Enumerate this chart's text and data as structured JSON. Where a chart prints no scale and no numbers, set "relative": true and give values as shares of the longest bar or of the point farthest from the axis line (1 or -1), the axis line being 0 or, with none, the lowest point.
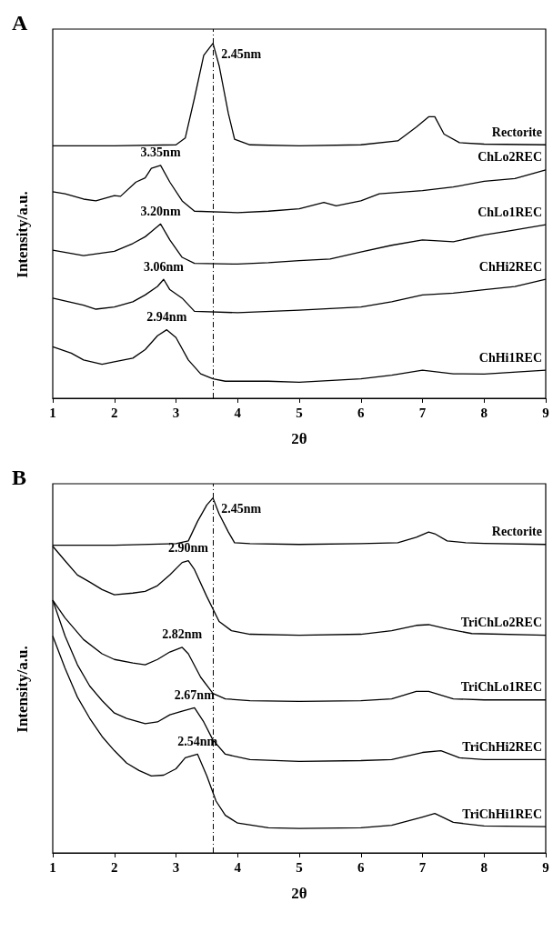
{
  "chart_data": [
    {
      "type": "line",
      "title": "A",
      "xlabel": "2θ",
      "ylabel": "Intensity/a.u.",
      "relative": true,
      "xlim": [
        1,
        9
      ],
      "xticks": [
        1,
        2,
        3,
        4,
        5,
        6,
        7,
        8,
        9
      ],
      "tick_labels": "x",
      "grid": false,
      "legend": false,
      "marker": "none",
      "line_style": "solid",
      "ref_lines": [
        {
          "axis": "x",
          "value": 3.6,
          "line_style": "dashed",
          "color": "#000000"
        }
      ],
      "annotations": [
        {
          "text": "2.45nm",
          "x": 3.6,
          "y": 1.0
        },
        {
          "text": "3.35nm",
          "x": 2.75,
          "y": 0.656
        },
        {
          "text": "3.20nm",
          "x": 2.75,
          "y": 0.491
        },
        {
          "text": "3.06nm",
          "x": 2.8,
          "y": 0.335
        },
        {
          "text": "2.94nm",
          "x": 2.85,
          "y": 0.193
        }
      ],
      "series": [
        {
          "name": "Rectorite",
          "color": "#000000",
          "x": [
            1,
            2,
            3,
            3.15,
            3.3,
            3.45,
            3.6,
            3.7,
            3.85,
            3.95,
            4.2,
            5,
            6,
            6.6,
            6.9,
            7.1,
            7.2,
            7.35,
            7.6,
            8,
            9
          ],
          "values": [
            0.711,
            0.711,
            0.714,
            0.733,
            0.846,
            0.966,
            1.0,
            0.937,
            0.802,
            0.73,
            0.714,
            0.711,
            0.714,
            0.725,
            0.764,
            0.793,
            0.793,
            0.744,
            0.72,
            0.716,
            0.714
          ]
        },
        {
          "name": "ChLo2REC",
          "color": "#000000",
          "x": [
            1,
            1.2,
            1.5,
            1.7,
            2,
            2.1,
            2.35,
            2.5,
            2.6,
            2.75,
            2.9,
            3.1,
            3.3,
            4,
            4.5,
            5,
            5.4,
            5.6,
            6,
            6.3,
            7,
            7.5,
            8,
            8.5,
            9
          ],
          "values": [
            0.582,
            0.576,
            0.561,
            0.556,
            0.571,
            0.569,
            0.609,
            0.621,
            0.648,
            0.656,
            0.609,
            0.556,
            0.527,
            0.523,
            0.527,
            0.534,
            0.552,
            0.542,
            0.556,
            0.576,
            0.585,
            0.595,
            0.611,
            0.619,
            0.643
          ]
        },
        {
          "name": "ChLo1REC",
          "color": "#000000",
          "x": [
            1,
            1.5,
            2,
            2.3,
            2.5,
            2.75,
            2.9,
            3.1,
            3.3,
            4,
            4.5,
            5,
            5.5,
            6,
            6.5,
            7,
            7.5,
            8,
            8.5,
            9
          ],
          "values": [
            0.417,
            0.402,
            0.414,
            0.436,
            0.455,
            0.491,
            0.446,
            0.397,
            0.38,
            0.378,
            0.382,
            0.388,
            0.392,
            0.412,
            0.431,
            0.446,
            0.441,
            0.46,
            0.474,
            0.489
          ]
        },
        {
          "name": "ChHi2REC",
          "color": "#000000",
          "x": [
            1,
            1.5,
            1.7,
            2,
            2.3,
            2.5,
            2.7,
            2.8,
            2.9,
            3.1,
            3.3,
            4,
            5,
            6,
            6.5,
            7,
            7.5,
            8,
            8.5,
            9
          ],
          "values": [
            0.282,
            0.262,
            0.251,
            0.257,
            0.272,
            0.291,
            0.315,
            0.335,
            0.306,
            0.282,
            0.245,
            0.241,
            0.248,
            0.257,
            0.272,
            0.291,
            0.296,
            0.306,
            0.315,
            0.335
          ]
        },
        {
          "name": "ChHi1REC",
          "color": "#000000",
          "x": [
            1,
            1.3,
            1.5,
            1.8,
            2,
            2.3,
            2.5,
            2.7,
            2.85,
            3,
            3.2,
            3.4,
            3.6,
            3.8,
            4.5,
            5,
            6,
            6.5,
            7,
            7.5,
            8,
            9
          ],
          "values": [
            0.145,
            0.127,
            0.108,
            0.096,
            0.103,
            0.113,
            0.137,
            0.176,
            0.193,
            0.171,
            0.108,
            0.069,
            0.055,
            0.048,
            0.048,
            0.045,
            0.055,
            0.065,
            0.079,
            0.069,
            0.068,
            0.079
          ]
        }
      ]
    },
    {
      "type": "line",
      "title": "B",
      "xlabel": "2θ",
      "ylabel": "Intensity/a.u.",
      "relative": true,
      "xlim": [
        1,
        9
      ],
      "xticks": [
        1,
        2,
        3,
        4,
        5,
        6,
        7,
        8,
        9
      ],
      "tick_labels": "x",
      "grid": false,
      "legend": false,
      "marker": "none",
      "line_style": "solid",
      "ref_lines": [
        {
          "axis": "x",
          "value": 3.6,
          "line_style": "dashed",
          "color": "#000000"
        }
      ],
      "annotations": [
        {
          "text": "2.45nm",
          "x": 3.6,
          "y": 1.0
        },
        {
          "text": "2.90nm",
          "x": 3.2,
          "y": 0.823
        },
        {
          "text": "2.82nm",
          "x": 3.1,
          "y": 0.579
        },
        {
          "text": "2.67nm",
          "x": 3.3,
          "y": 0.409
        },
        {
          "text": "2.54nm",
          "x": 3.35,
          "y": 0.278
        }
      ],
      "series": [
        {
          "name": "Rectorite",
          "color": "#000000",
          "x": [
            1,
            2,
            3,
            3.2,
            3.35,
            3.5,
            3.6,
            3.7,
            3.85,
            3.95,
            4.2,
            5,
            6,
            6.6,
            6.9,
            7.1,
            7.2,
            7.4,
            7.7,
            8,
            9
          ],
          "values": [
            0.867,
            0.867,
            0.871,
            0.879,
            0.934,
            0.98,
            1.0,
            0.955,
            0.904,
            0.874,
            0.871,
            0.869,
            0.871,
            0.874,
            0.889,
            0.904,
            0.899,
            0.879,
            0.874,
            0.872,
            0.869
          ]
        },
        {
          "name": "TriChLo2REC",
          "color": "#000000",
          "x": [
            1,
            1.2,
            1.4,
            1.6,
            1.8,
            2,
            2.3,
            2.5,
            2.7,
            2.9,
            3.1,
            3.2,
            3.3,
            3.5,
            3.7,
            3.9,
            4.2,
            5,
            6,
            6.5,
            6.9,
            7.1,
            7.4,
            7.8,
            9
          ],
          "values": [
            0.864,
            0.823,
            0.783,
            0.763,
            0.742,
            0.727,
            0.732,
            0.737,
            0.753,
            0.783,
            0.818,
            0.823,
            0.798,
            0.722,
            0.652,
            0.626,
            0.616,
            0.613,
            0.616,
            0.626,
            0.641,
            0.643,
            0.631,
            0.618,
            0.613
          ]
        },
        {
          "name": "TriChLo1REC",
          "color": "#000000",
          "x": [
            1,
            1.2,
            1.5,
            1.8,
            2,
            2.3,
            2.5,
            2.7,
            2.9,
            3.1,
            3.2,
            3.4,
            3.6,
            3.8,
            4.2,
            5,
            6,
            6.5,
            6.9,
            7.1,
            7.5,
            8,
            9
          ],
          "values": [
            0.712,
            0.662,
            0.601,
            0.561,
            0.545,
            0.535,
            0.53,
            0.545,
            0.566,
            0.579,
            0.561,
            0.495,
            0.449,
            0.434,
            0.429,
            0.427,
            0.429,
            0.434,
            0.455,
            0.455,
            0.434,
            0.431,
            0.431
          ]
        },
        {
          "name": "TriChHi2REC",
          "color": "#000000",
          "x": [
            1,
            1.2,
            1.4,
            1.6,
            1.8,
            2,
            2.2,
            2.5,
            2.7,
            2.9,
            3.1,
            3.3,
            3.45,
            3.6,
            3.8,
            4.2,
            5,
            6,
            6.5,
            7,
            7.3,
            7.6,
            8,
            9
          ],
          "values": [
            0.712,
            0.611,
            0.53,
            0.47,
            0.429,
            0.394,
            0.379,
            0.364,
            0.369,
            0.389,
            0.399,
            0.409,
            0.369,
            0.318,
            0.278,
            0.263,
            0.258,
            0.26,
            0.263,
            0.283,
            0.288,
            0.268,
            0.263,
            0.263
          ]
        },
        {
          "name": "TriChHi1REC",
          "color": "#000000",
          "x": [
            1,
            1.2,
            1.4,
            1.6,
            1.8,
            2,
            2.2,
            2.4,
            2.6,
            2.8,
            3,
            3.15,
            3.35,
            3.5,
            3.65,
            3.8,
            4,
            4.5,
            5,
            6,
            6.5,
            7,
            7.2,
            7.5,
            8,
            9
          ],
          "values": [
            0.611,
            0.52,
            0.439,
            0.379,
            0.328,
            0.288,
            0.253,
            0.232,
            0.217,
            0.219,
            0.237,
            0.268,
            0.278,
            0.217,
            0.146,
            0.106,
            0.084,
            0.071,
            0.069,
            0.071,
            0.078,
            0.101,
            0.111,
            0.086,
            0.076,
            0.074
          ]
        }
      ]
    }
  ]
}
